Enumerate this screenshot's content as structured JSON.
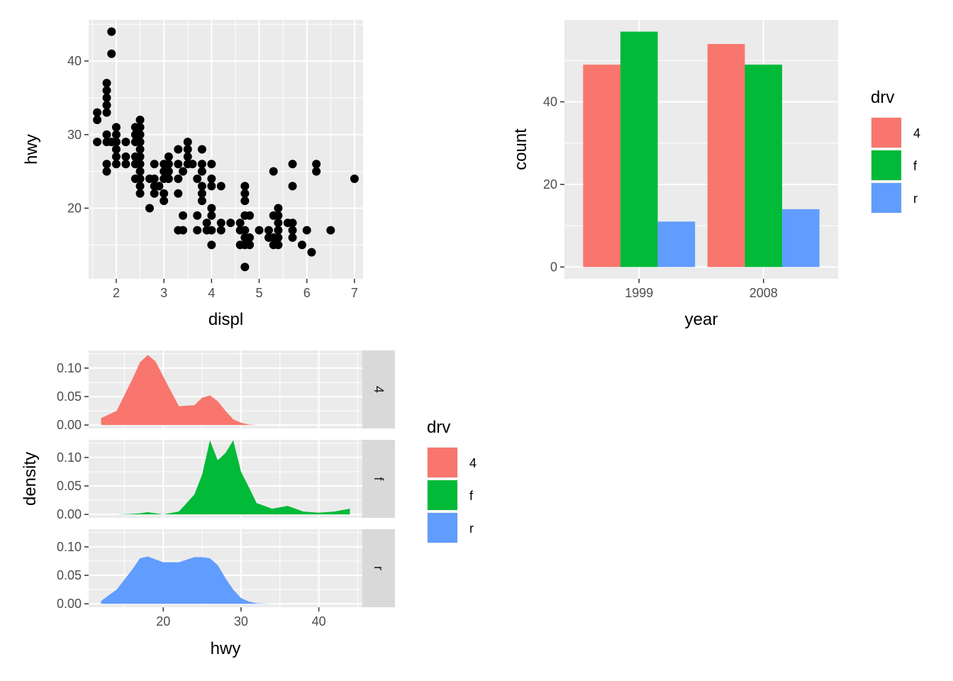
{
  "chart_data": [
    {
      "type": "scatter",
      "title": "",
      "xlabel": "displ",
      "ylabel": "hwy",
      "xlim": [
        1.42,
        7.18
      ],
      "ylim": [
        10.4,
        45.6
      ],
      "xticks": [
        "2",
        "3",
        "4",
        "5",
        "6",
        "7"
      ],
      "yticks": [
        "20",
        "30",
        "40"
      ],
      "grid": true,
      "point_color": "#000000",
      "points": [
        [
          1.6,
          33
        ],
        [
          1.6,
          32
        ],
        [
          1.6,
          29
        ],
        [
          1.8,
          29
        ],
        [
          1.8,
          26
        ],
        [
          1.8,
          25
        ],
        [
          1.8,
          33
        ],
        [
          1.8,
          34
        ],
        [
          1.8,
          35
        ],
        [
          1.8,
          36
        ],
        [
          1.8,
          37
        ],
        [
          1.8,
          30
        ],
        [
          1.9,
          44
        ],
        [
          1.9,
          41
        ],
        [
          1.9,
          29
        ],
        [
          2.0,
          31
        ],
        [
          2.0,
          30
        ],
        [
          2.0,
          29
        ],
        [
          2.0,
          28
        ],
        [
          2.0,
          27
        ],
        [
          2.0,
          26
        ],
        [
          2.2,
          26
        ],
        [
          2.2,
          27
        ],
        [
          2.2,
          29
        ],
        [
          2.4,
          31
        ],
        [
          2.4,
          30
        ],
        [
          2.4,
          29
        ],
        [
          2.4,
          27
        ],
        [
          2.4,
          26
        ],
        [
          2.4,
          24
        ],
        [
          2.5,
          32
        ],
        [
          2.5,
          31
        ],
        [
          2.5,
          30
        ],
        [
          2.5,
          29
        ],
        [
          2.5,
          28
        ],
        [
          2.5,
          27
        ],
        [
          2.5,
          26
        ],
        [
          2.5,
          25
        ],
        [
          2.5,
          24
        ],
        [
          2.5,
          23
        ],
        [
          2.5,
          22
        ],
        [
          2.7,
          20
        ],
        [
          2.7,
          24
        ],
        [
          2.8,
          24
        ],
        [
          2.8,
          26
        ],
        [
          2.8,
          23
        ],
        [
          2.8,
          22
        ],
        [
          2.9,
          23
        ],
        [
          3.0,
          26
        ],
        [
          3.0,
          25
        ],
        [
          3.0,
          24
        ],
        [
          3.0,
          22
        ],
        [
          3.0,
          21
        ],
        [
          3.1,
          27
        ],
        [
          3.1,
          26
        ],
        [
          3.1,
          25
        ],
        [
          3.1,
          24
        ],
        [
          3.3,
          28
        ],
        [
          3.3,
          26
        ],
        [
          3.3,
          24
        ],
        [
          3.3,
          22
        ],
        [
          3.3,
          17
        ],
        [
          3.4,
          25
        ],
        [
          3.4,
          19
        ],
        [
          3.4,
          17
        ],
        [
          3.5,
          29
        ],
        [
          3.5,
          28
        ],
        [
          3.5,
          27
        ],
        [
          3.5,
          26
        ],
        [
          3.6,
          26
        ],
        [
          3.7,
          24
        ],
        [
          3.7,
          19
        ],
        [
          3.7,
          17
        ],
        [
          3.8,
          28
        ],
        [
          3.8,
          26
        ],
        [
          3.8,
          25
        ],
        [
          3.8,
          23
        ],
        [
          3.8,
          22
        ],
        [
          3.8,
          21
        ],
        [
          3.9,
          18
        ],
        [
          3.9,
          17
        ],
        [
          4.0,
          26
        ],
        [
          4.0,
          24
        ],
        [
          4.0,
          23
        ],
        [
          4.0,
          20
        ],
        [
          4.0,
          19
        ],
        [
          4.0,
          17
        ],
        [
          4.0,
          15
        ],
        [
          4.2,
          23
        ],
        [
          4.2,
          18
        ],
        [
          4.2,
          17
        ],
        [
          4.4,
          18
        ],
        [
          4.6,
          17
        ],
        [
          4.6,
          18
        ],
        [
          4.6,
          15
        ],
        [
          4.7,
          22
        ],
        [
          4.7,
          23
        ],
        [
          4.7,
          21
        ],
        [
          4.7,
          19
        ],
        [
          4.7,
          17
        ],
        [
          4.7,
          16
        ],
        [
          4.7,
          15
        ],
        [
          4.7,
          12
        ],
        [
          4.8,
          19
        ],
        [
          4.8,
          16
        ],
        [
          4.8,
          15
        ],
        [
          5.0,
          17
        ],
        [
          5.2,
          17
        ],
        [
          5.2,
          16
        ],
        [
          5.3,
          25
        ],
        [
          5.3,
          19
        ],
        [
          5.3,
          16
        ],
        [
          5.3,
          15
        ],
        [
          5.4,
          20
        ],
        [
          5.4,
          19
        ],
        [
          5.4,
          18
        ],
        [
          5.4,
          17
        ],
        [
          5.4,
          16
        ],
        [
          5.4,
          15
        ],
        [
          5.6,
          18
        ],
        [
          5.7,
          26
        ],
        [
          5.7,
          23
        ],
        [
          5.7,
          18
        ],
        [
          5.7,
          17
        ],
        [
          5.7,
          16
        ],
        [
          5.9,
          15
        ],
        [
          6.0,
          17
        ],
        [
          6.1,
          14
        ],
        [
          6.2,
          26
        ],
        [
          6.2,
          25
        ],
        [
          6.5,
          17
        ],
        [
          7.0,
          24
        ]
      ]
    },
    {
      "type": "bar",
      "title": "",
      "xlabel": "year",
      "ylabel": "count",
      "categories": [
        "1999",
        "2008"
      ],
      "ylim": [
        -2.85,
        59.85
      ],
      "yticks": [
        "0",
        "20",
        "40"
      ],
      "grid": true,
      "series": [
        {
          "name": "4",
          "color": "#F8766D",
          "values": [
            49,
            54
          ]
        },
        {
          "name": "f",
          "color": "#00BA38",
          "values": [
            57,
            49
          ]
        },
        {
          "name": "r",
          "color": "#619CFF",
          "values": [
            11,
            14
          ]
        }
      ],
      "legend": {
        "title": "drv",
        "position": "right"
      }
    },
    {
      "type": "area",
      "title": "",
      "xlabel": "hwy",
      "ylabel": "density",
      "xlim": [
        10.4,
        45.6
      ],
      "ylim": [
        -0.006,
        0.131
      ],
      "xticks": [
        "20",
        "30",
        "40"
      ],
      "yticks": [
        "0.00",
        "0.05",
        "0.10"
      ],
      "grid": true,
      "x": [
        12,
        14,
        16,
        17,
        18,
        19,
        20,
        22,
        24,
        25,
        26,
        27,
        28,
        29,
        30,
        31,
        32,
        34,
        36,
        38,
        40,
        42,
        44
      ],
      "series": [
        {
          "name": "4",
          "color": "#F8766D",
          "values": [
            0.012,
            0.025,
            0.08,
            0.11,
            0.123,
            0.112,
            0.085,
            0.033,
            0.035,
            0.048,
            0.052,
            0.042,
            0.025,
            0.01,
            0.004,
            0.001,
            0.0,
            0.0,
            0.0,
            0.0,
            0.0,
            0.0,
            0.0
          ]
        },
        {
          "name": "f",
          "color": "#00BA38",
          "values": [
            0.0,
            0.0,
            0.001,
            0.002,
            0.004,
            0.002,
            0.0,
            0.005,
            0.035,
            0.07,
            0.13,
            0.095,
            0.108,
            0.13,
            0.075,
            0.048,
            0.02,
            0.01,
            0.015,
            0.005,
            0.003,
            0.005,
            0.01
          ]
        },
        {
          "name": "r",
          "color": "#619CFF",
          "values": [
            0.005,
            0.025,
            0.06,
            0.08,
            0.083,
            0.078,
            0.073,
            0.073,
            0.082,
            0.082,
            0.08,
            0.068,
            0.045,
            0.025,
            0.01,
            0.004,
            0.001,
            0.0,
            0.0,
            0.0,
            0.0,
            0.0,
            0.0
          ]
        }
      ],
      "facets": [
        "4",
        "f",
        "r"
      ],
      "legend": {
        "title": "drv",
        "position": "right"
      }
    }
  ]
}
